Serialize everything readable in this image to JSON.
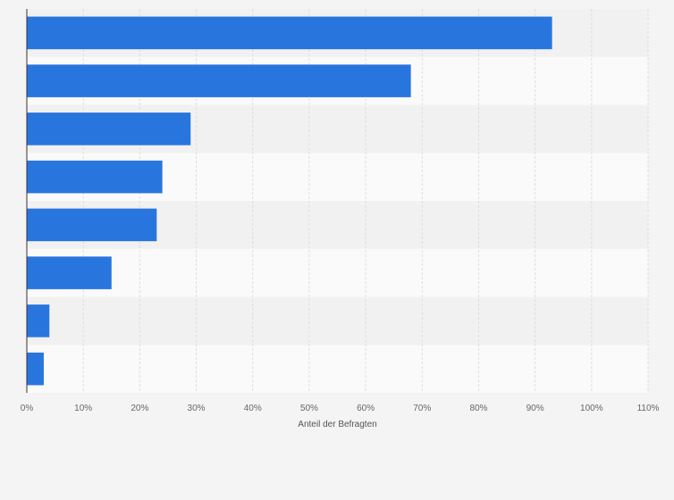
{
  "chart_data": {
    "type": "bar",
    "orientation": "horizontal",
    "title": "",
    "xlabel": "Anteil der Befragten",
    "ylabel": "",
    "categories": [
      "",
      "",
      "",
      "",
      "",
      "",
      "",
      ""
    ],
    "values": [
      93,
      68,
      29,
      24,
      23,
      15,
      4,
      3
    ],
    "unit": "%",
    "xlim": [
      0,
      110
    ],
    "x_ticks": [
      0,
      10,
      20,
      30,
      40,
      50,
      60,
      70,
      80,
      90,
      100,
      110
    ],
    "x_tick_labels": [
      "0%",
      "10%",
      "20%",
      "30%",
      "40%",
      "50%",
      "60%",
      "70%",
      "80%",
      "90%",
      "100%",
      "110%"
    ],
    "grid": "vertical",
    "legend": "none",
    "colors": {
      "bar": "#2876dd",
      "band_even": "#f1f1f1",
      "band_odd": "#fafafa",
      "grid": "#dedede",
      "axis": "#333333",
      "background": "#f4f4f4"
    }
  }
}
